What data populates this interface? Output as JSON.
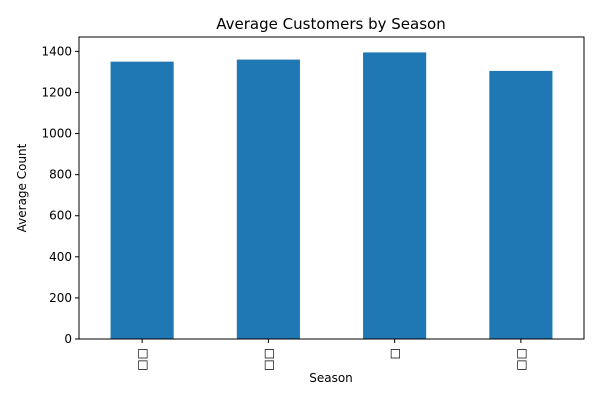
{
  "chart_data": {
    "type": "bar",
    "title": "Average Customers by Season",
    "xlabel": "Season",
    "ylabel": "Average Count",
    "categories": [
      "□□",
      "□□",
      "□",
      "□□"
    ],
    "values": [
      1350,
      1360,
      1395,
      1305
    ],
    "ylim": [
      0,
      1470
    ],
    "yticks": [
      0,
      200,
      400,
      600,
      800,
      1000,
      1200,
      1400
    ],
    "grid": false,
    "legend": "none",
    "bar_color": "#1f77b4"
  }
}
